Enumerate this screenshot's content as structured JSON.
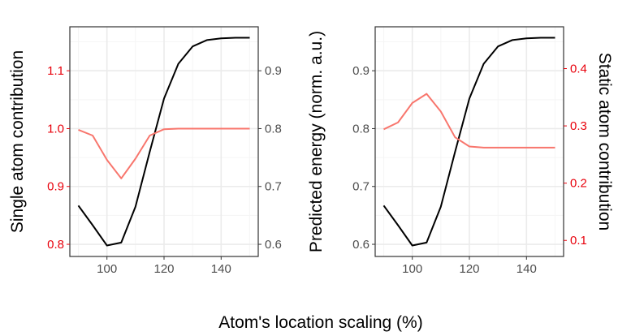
{
  "colors": {
    "primary_line": "#000000",
    "secondary_line": "#f8766d",
    "secondary_axis_text": "#e8000b",
    "tick_text": "#4d4d4d",
    "grid_major": "#ebebeb",
    "grid_minor": "#f5f5f5",
    "panel_border": "#333333"
  },
  "xlabel": "Atom's location scaling (%)",
  "chart_data": [
    {
      "type": "line",
      "panel": "left",
      "xlim": [
        87,
        153
      ],
      "x_ticks": [
        100,
        120,
        140
      ],
      "y_left_label": "Single atom contribution",
      "y_left_lim": [
        0.779,
        1.176
      ],
      "y_left_ticks": [
        0.8,
        0.9,
        1.0,
        1.1
      ],
      "y_right_label": "Predicted energy (norm. a.u.)",
      "y_right_lim": [
        0.579,
        0.976
      ],
      "y_right_ticks": [
        0.6,
        0.7,
        0.8,
        0.9
      ],
      "series": [
        {
          "axis": "right",
          "color_key": "primary_line",
          "x": [
            90,
            95,
            100,
            105,
            110,
            115,
            120,
            125,
            130,
            135,
            140,
            145,
            150
          ],
          "y": [
            0.667,
            0.633,
            0.598,
            0.603,
            0.665,
            0.76,
            0.852,
            0.912,
            0.942,
            0.953,
            0.956,
            0.957,
            0.957
          ]
        },
        {
          "axis": "left",
          "color_key": "secondary_line",
          "x": [
            90,
            95,
            100,
            105,
            110,
            115,
            120,
            125,
            130,
            135,
            140,
            145,
            150
          ],
          "y": [
            0.998,
            0.988,
            0.946,
            0.914,
            0.948,
            0.988,
            0.999,
            1.0,
            1.0,
            1.0,
            1.0,
            1.0,
            1.0
          ]
        }
      ]
    },
    {
      "type": "line",
      "panel": "right",
      "xlim": [
        87,
        153
      ],
      "x_ticks": [
        100,
        120,
        140
      ],
      "y_left_label": "",
      "y_left_lim": [
        0.579,
        0.976
      ],
      "y_left_ticks": [
        0.6,
        0.7,
        0.8,
        0.9
      ],
      "y_right_label": "Static atom contribution",
      "y_right_lim": [
        0.072,
        0.473
      ],
      "y_right_ticks": [
        0.1,
        0.2,
        0.3,
        0.4
      ],
      "series": [
        {
          "axis": "left",
          "color_key": "primary_line",
          "x": [
            90,
            95,
            100,
            105,
            110,
            115,
            120,
            125,
            130,
            135,
            140,
            145,
            150
          ],
          "y": [
            0.667,
            0.633,
            0.598,
            0.603,
            0.665,
            0.76,
            0.852,
            0.912,
            0.942,
            0.953,
            0.956,
            0.957,
            0.957
          ]
        },
        {
          "axis": "right",
          "color_key": "secondary_line",
          "x": [
            90,
            95,
            100,
            105,
            110,
            115,
            120,
            125,
            130,
            135,
            140,
            145,
            150
          ],
          "y": [
            0.294,
            0.306,
            0.34,
            0.356,
            0.325,
            0.28,
            0.264,
            0.262,
            0.262,
            0.262,
            0.262,
            0.262,
            0.262
          ]
        }
      ]
    }
  ]
}
